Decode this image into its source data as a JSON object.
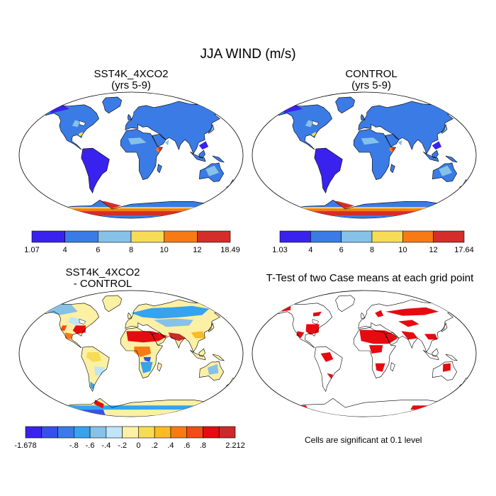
{
  "figure": {
    "title": "JJA WIND (m/s)",
    "colors": {
      "wind": [
        "#3a22ee",
        "#3a7be6",
        "#86c1e8",
        "#f6dc56",
        "#f87a14",
        "#d42d2a"
      ],
      "diff": [
        "#3a22ee",
        "#3650ea",
        "#3a7be6",
        "#35a3ef",
        "#86c1e8",
        "#bfe5f7",
        "#fcf0a4",
        "#f6dc56",
        "#fbba26",
        "#f87a14",
        "#f34b14",
        "#e50b10",
        "#c92a2a"
      ],
      "significant": "#e50b10",
      "ocean": "#ffffff",
      "coast": "#000000"
    }
  },
  "panels": {
    "top_left": {
      "title_line1": "SST4K_4XCO2",
      "title_line2": "(yrs 5-9)",
      "colorbar_labels": [
        "1.07",
        "4",
        "6",
        "8",
        "10",
        "12",
        "18.49"
      ]
    },
    "top_right": {
      "title_line1": "CONTROL",
      "title_line2": "(yrs 5-9)",
      "colorbar_labels": [
        "1.03",
        "4",
        "6",
        "8",
        "10",
        "12",
        "17.64"
      ]
    },
    "bottom_left": {
      "title_line1": "SST4K_4XCO2",
      "title_line2": "- CONTROL",
      "colorbar_labels": [
        "-1.678",
        "-.8",
        "-.6",
        "-.4",
        "-.2",
        "0",
        ".2",
        ".4",
        ".6",
        ".8",
        "2.212"
      ]
    },
    "bottom_right": {
      "title": "T-Test of two Case means at each grid point",
      "note": "Cells are significant at 0.1 level"
    }
  }
}
